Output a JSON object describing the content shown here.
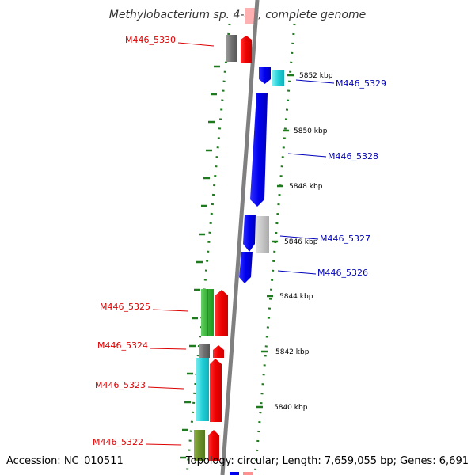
{
  "title": "Methylobacterium sp. 4-46, complete genome",
  "footer": {
    "accession": "Accession: NC_010511",
    "topology": "Topology: circular; Length: 7,659,055 bp; Genes: 6,691"
  },
  "colors": {
    "left_label": "#dd0000",
    "right_label": "#0000bb",
    "ruler": "#1f7a1f",
    "backbone": "#808080"
  },
  "kbp_ticks": [
    {
      "label": "5852 kbp",
      "kbp": 5852
    },
    {
      "label": "5850 kbp",
      "kbp": 5850
    },
    {
      "label": "5848 kbp",
      "kbp": 5848
    },
    {
      "label": "5846 kbp",
      "kbp": 5846
    },
    {
      "label": "5844 kbp",
      "kbp": 5844
    },
    {
      "label": "5842 kbp",
      "kbp": 5842
    },
    {
      "label": "5840 kbp",
      "kbp": 5840
    }
  ],
  "genes_left": [
    {
      "label": "M446_5330",
      "color": "#dd0000"
    },
    {
      "label": "M446_5325",
      "color": "#dd0000"
    },
    {
      "label": "M446_5324",
      "color": "#dd0000"
    },
    {
      "label": "M446_5323",
      "color": "#dd0000"
    },
    {
      "label": "M446_5322",
      "color": "#dd0000"
    }
  ],
  "genes_right": [
    {
      "label": "M446_5329",
      "color": "#0000bb"
    },
    {
      "label": "M446_5328",
      "color": "#0000bb"
    },
    {
      "label": "M446_5327",
      "color": "#0000bb"
    },
    {
      "label": "M446_5326",
      "color": "#0000bb"
    }
  ]
}
